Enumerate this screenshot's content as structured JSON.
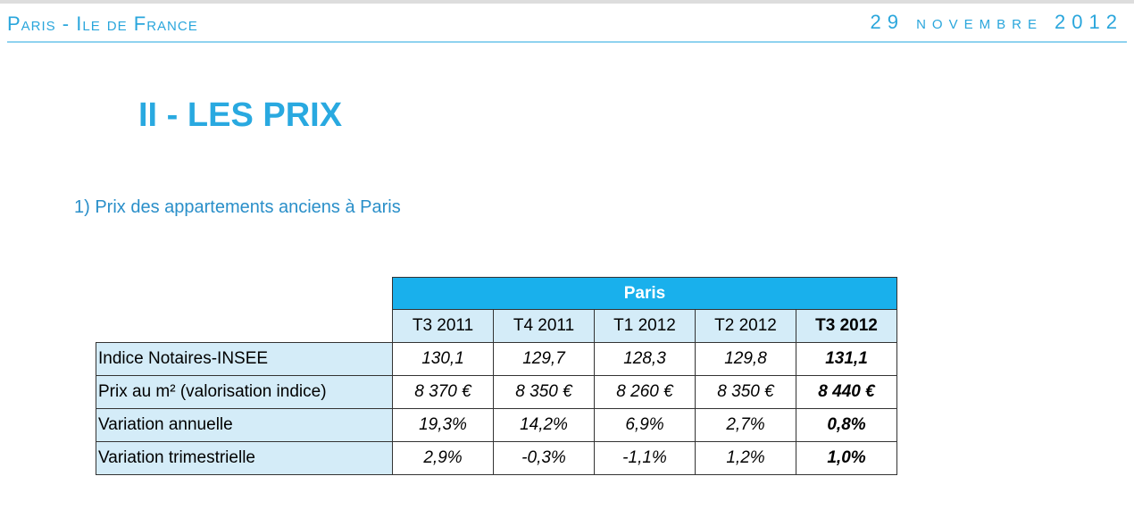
{
  "header": {
    "left": "Paris - Ile de France",
    "right": "29 novembre 2012"
  },
  "title": "II - LES PRIX",
  "subtitle": "1) Prix des appartements anciens à Paris",
  "table": {
    "group": "Paris",
    "columns": [
      "T3 2011",
      "T4 2011",
      "T1 2012",
      "T2 2012",
      "T3 2012"
    ],
    "rows": [
      {
        "label": "Indice Notaires-INSEE",
        "cells": [
          "130,1",
          "129,7",
          "128,3",
          "129,8",
          "131,1"
        ]
      },
      {
        "label": "Prix au m² (valorisation indice)",
        "cells": [
          "8 370 €",
          "8 350 €",
          "8 260 €",
          "8 350 €",
          "8 440 €"
        ]
      },
      {
        "label": "Variation annuelle",
        "cells": [
          "19,3%",
          "14,2%",
          "6,9%",
          "2,7%",
          "0,8%"
        ]
      },
      {
        "label": "Variation trimestrielle",
        "cells": [
          "2,9%",
          "-0,3%",
          "-1,1%",
          "1,2%",
          "1,0%"
        ]
      }
    ]
  }
}
